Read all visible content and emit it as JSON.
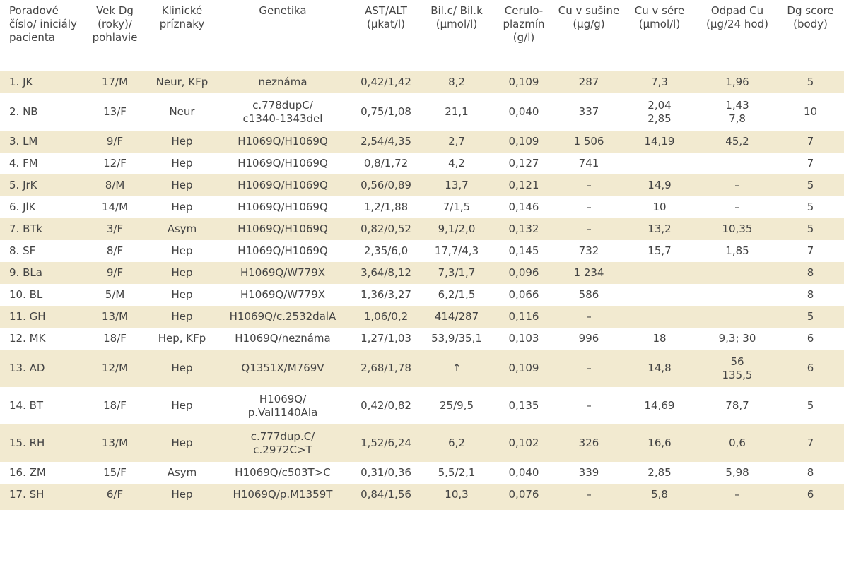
{
  "headers": [
    "Poradové číslo/ iniciály pacienta",
    "Vek Dg (roky)/ pohlavie",
    "Klinické príznaky",
    "Genetika",
    "AST/ALT (μkat/l)",
    "Bil.c/ Bil.k (μmol/l)",
    "Cerulo-plazmín (g/l)",
    "Cu v sušine (μg/g)",
    "Cu v sére (μmol/l)",
    "Odpad Cu (μg/24 hod)",
    "Dg score (body)"
  ],
  "rows": [
    [
      "1. JK",
      "17/M",
      "Neur, KFp",
      "neznáma",
      "0,42/1,42",
      "8,2",
      "0,109",
      "287",
      "7,3",
      "1,96",
      "5"
    ],
    [
      "2. NB",
      "13/F",
      "Neur",
      "c.778dupC/\nc1340-1343del",
      "0,75/1,08",
      "21,1",
      "0,040",
      "337",
      "2,04\n2,85",
      "1,43\n7,8",
      "10"
    ],
    [
      "3. LM",
      "9/F",
      "Hep",
      "H1069Q/H1069Q",
      "2,54/4,35",
      "2,7",
      "0,109",
      "1 506",
      "14,19",
      "45,2",
      "7"
    ],
    [
      "4. FM",
      "12/F",
      "Hep",
      "H1069Q/H1069Q",
      "0,8/1,72",
      "4,2",
      "0,127",
      "741",
      "",
      "",
      "7"
    ],
    [
      "5. JrK",
      "8/M",
      "Hep",
      "H1069Q/H1069Q",
      "0,56/0,89",
      "13,7",
      "0,121",
      "–",
      "14,9",
      "–",
      "5"
    ],
    [
      "6. JlK",
      "14/M",
      "Hep",
      "H1069Q/H1069Q",
      "1,2/1,88",
      "7/1,5",
      "0,146",
      "–",
      "10",
      "–",
      "5"
    ],
    [
      "7. BTk",
      "3/F",
      "Asym",
      "H1069Q/H1069Q",
      "0,82/0,52",
      "9,1/2,0",
      "0,132",
      "–",
      "13,2",
      "10,35",
      "5"
    ],
    [
      "8. SF",
      "8/F",
      "Hep",
      "H1069Q/H1069Q",
      "2,35/6,0",
      "17,7/4,3",
      "0,145",
      "732",
      "15,7",
      "1,85",
      "7"
    ],
    [
      "9. BLa",
      "9/F",
      "Hep",
      "H1069Q/W779X",
      "3,64/8,12",
      "7,3/1,7",
      "0,096",
      "1 234",
      "",
      "",
      "8"
    ],
    [
      "10. BL",
      "5/M",
      "Hep",
      "H1069Q/W779X",
      "1,36/3,27",
      "6,2/1,5",
      "0,066",
      "586",
      "",
      "",
      "8"
    ],
    [
      "11. GH",
      "13/M",
      "Hep",
      "H1069Q/c.2532dalA",
      "1,06/0,2",
      "414/287",
      "0,116",
      "–",
      "",
      "",
      "5"
    ],
    [
      "12. MK",
      "18/F",
      "Hep, KFp",
      "H1069Q/neznáma",
      "1,27/1,03",
      "53,9/35,1",
      "0,103",
      "996",
      "18",
      "9,3; 30",
      "6"
    ],
    [
      "13. AD",
      "12/M",
      "Hep",
      "Q1351X/M769V",
      "2,68/1,78",
      "↑",
      "0,109",
      "–",
      "14,8",
      "56\n135,5",
      "6"
    ],
    [
      "14. BT",
      "18/F",
      "Hep",
      "H1069Q/\np.Val1140Ala",
      "0,42/0,82",
      "25/9,5",
      "0,135",
      "–",
      "14,69",
      "78,7",
      "5"
    ],
    [
      "15. RH",
      "13/M",
      "Hep",
      "c.777dup.C/\nc.2972C>T",
      "1,52/6,24",
      "6,2",
      "0,102",
      "326",
      "16,6",
      "0,6",
      "7"
    ],
    [
      "16. ZM",
      "15/F",
      "Asym",
      "H1069Q/c503T>C",
      "0,31/0,36",
      "5,5/2,1",
      "0,040",
      "339",
      "2,85",
      "5,98",
      "8"
    ],
    [
      "17. SH",
      "6/F",
      "Hep",
      "H1069Q/p.M1359T",
      "0,84/1,56",
      "10,3",
      "0,076",
      "–",
      "5,8",
      "–",
      "6"
    ]
  ]
}
